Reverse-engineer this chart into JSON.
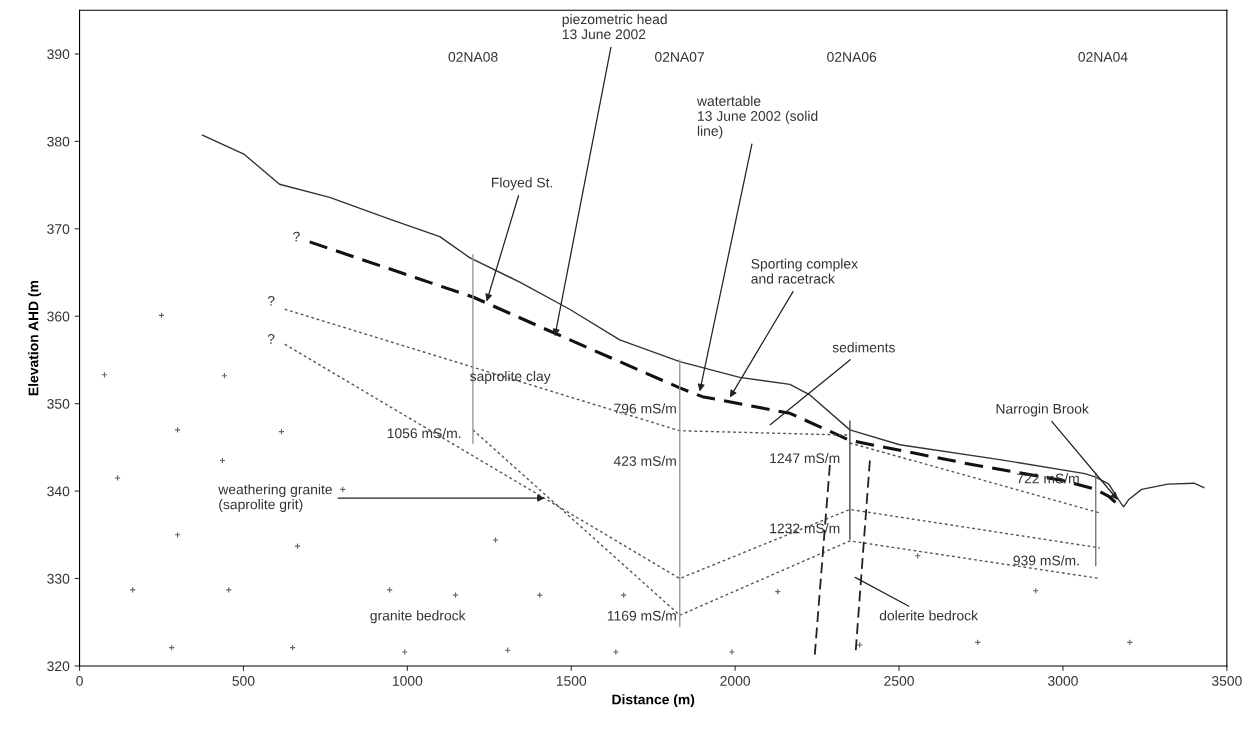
{
  "chart_data": {
    "type": "line",
    "xlabel": "Distance (m)",
    "ylabel": "Elevation AHD (m",
    "xlim": [
      0,
      3500
    ],
    "xticks": [
      0,
      500,
      1000,
      1500,
      2000,
      2500,
      3000,
      3500
    ],
    "ylim": [
      320,
      395
    ],
    "yticks": [
      320,
      330,
      340,
      350,
      360,
      370,
      380,
      390
    ],
    "grid": false,
    "legend": false,
    "marker": "none",
    "series": [
      {
        "color": "#333333",
        "line_style": "solid",
        "x": [
          375,
          503,
          610,
          763,
          946,
          1099,
          1190,
          1343,
          1495,
          1648,
          1831,
          2014,
          2167,
          2228,
          2350,
          2502,
          2807,
          3067,
          3100,
          3140,
          3170,
          3185,
          3200,
          3240,
          3320,
          3400,
          3430
        ],
        "values": [
          380.7,
          378.5,
          375.1,
          373.6,
          371.1,
          369.1,
          366.7,
          363.9,
          360.8,
          357.3,
          354.8,
          353.0,
          352.2,
          351.0,
          347.0,
          345.3,
          343.6,
          342.0,
          341.6,
          340.8,
          339.0,
          338.2,
          339.0,
          340.2,
          340.8,
          340.9,
          340.4
        ]
      },
      {
        "color": "#111111",
        "line_style": "dashed",
        "x": [
          702,
          1200,
          1465,
          1831,
          1900,
          2167,
          2350,
          2700,
          3000,
          3100,
          3140,
          3160
        ],
        "values": [
          368.5,
          362.2,
          357.8,
          351.8,
          350.8,
          348.9,
          345.8,
          343.2,
          341.2,
          340.2,
          339.4,
          338.7
        ]
      },
      {
        "color": "#555555",
        "line_style": "dotted",
        "x": [
          626,
          1831,
          2350
        ],
        "values": [
          360.8,
          346.9,
          346.4
        ]
      },
      {
        "color": "#555555",
        "line_style": "dotted",
        "x": [
          626,
          1831,
          2350,
          3113
        ],
        "values": [
          356.8,
          330.0,
          337.9,
          333.5
        ]
      },
      {
        "color": "#555555",
        "line_style": "dotted",
        "x": [
          1200,
          1831,
          2350,
          3113
        ],
        "values": [
          347.0,
          325.8,
          334.3,
          330.0
        ]
      },
      {
        "color": "#555555",
        "line_style": "dotted",
        "x": [
          2350,
          3113
        ],
        "values": [
          345.5,
          337.5
        ]
      },
      {
        "color": "#222222",
        "line_style": "dashed",
        "x": [
          2289,
          2243
        ],
        "values": [
          343.0,
          321.3
        ]
      },
      {
        "color": "#222222",
        "line_style": "dashed",
        "x": [
          2411,
          2368
        ],
        "values": [
          343.5,
          321.8
        ]
      },
      {
        "color": "#999999",
        "line_style": "solid",
        "x": [
          1200,
          1200
        ],
        "values": [
          367.0,
          345.5
        ]
      },
      {
        "color": "#999999",
        "line_style": "solid",
        "x": [
          1831,
          1831
        ],
        "values": [
          355.0,
          324.5
        ]
      },
      {
        "color": "#444444",
        "line_style": "solid",
        "x": [
          2350,
          2350
        ],
        "values": [
          348.0,
          334.5
        ]
      },
      {
        "color": "#777777",
        "line_style": "solid",
        "x": [
          3100,
          3100
        ],
        "values": [
          342.0,
          331.5
        ]
      },
      {
        "type": "scatter",
        "marker": "cross",
        "color": "#666666",
        "x": [
          76,
          250,
          442,
          299,
          616,
          436,
          803,
          116,
          299,
          665,
          1269,
          162,
          455,
          946,
          1147,
          1404,
          1660,
          2130,
          281,
          650,
          992,
          1306,
          1636,
          1990,
          2380,
          2557,
          2740,
          2917,
          3204
        ],
        "values": [
          353.3,
          360.1,
          353.2,
          347.0,
          346.8,
          343.5,
          340.2,
          341.5,
          335.0,
          333.7,
          334.4,
          328.7,
          328.7,
          328.7,
          328.1,
          328.1,
          328.1,
          328.5,
          322.1,
          322.1,
          321.6,
          321.8,
          321.6,
          321.6,
          322.4,
          332.6,
          322.7,
          328.6,
          322.7
        ]
      }
    ],
    "annotations": [
      "02NA08",
      "02NA07",
      "02NA06",
      "02NA04",
      {
        "text": "piezometric head\n13 June 2002",
        "x": 1450,
        "y": 357.7
      },
      {
        "text": "watertable\n13 June 2002 (solid\nline)",
        "x": 1892,
        "y": 351.4
      },
      {
        "text": "Floyed St.",
        "x": 1242,
        "y": 361.7
      },
      {
        "text": "Sporting complex\nand racetrack",
        "x": 1984,
        "y": 350.7
      },
      "sediments",
      {
        "text": "Narrogin Brook",
        "x": 3167,
        "y": 339.0
      },
      {
        "text": "weathering granite\n(saprolite grit)",
        "x": 1419,
        "y": 339.2
      },
      "dolerite bedrock",
      {
        "text": "saprolite clay",
        "x": 1190,
        "y": 353.0
      },
      "granite bedrock",
      "1056 mS/m.",
      {
        "text": "796 mS/m",
        "x": 1822,
        "y": 349.3
      },
      {
        "text": "423 mS/m",
        "x": 1822,
        "y": 343.3
      },
      "1247 mS/m",
      "1232 mS/m",
      {
        "text": "1169 mS/m",
        "x": 1822,
        "y": 325.6
      },
      {
        "text": "722 mS/m",
        "x": 3051,
        "y": 341.3
      },
      "939 mS/m.",
      "?",
      "?",
      "?"
    ]
  }
}
